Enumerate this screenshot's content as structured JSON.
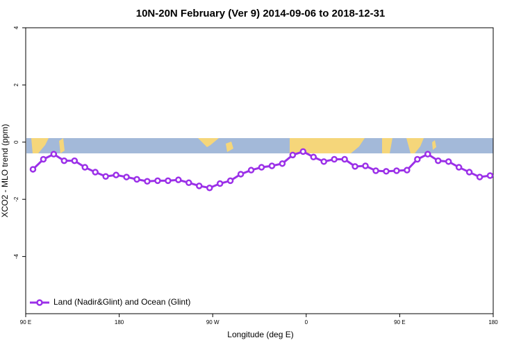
{
  "chart_data": {
    "type": "line",
    "title": "10N-20N February (Ver 9)   2014-09-06 to 2018-12-31",
    "x_label": "Longitude (deg E)",
    "y_label": "XCO2 - MLO trend (ppm)",
    "x": [
      97,
      107,
      117,
      127,
      137,
      147,
      157,
      167,
      177,
      187,
      197,
      207,
      217,
      227,
      237,
      247,
      257,
      267,
      277,
      287,
      297,
      307,
      317,
      327,
      337,
      347,
      357,
      367,
      377,
      387,
      397,
      407,
      417,
      427,
      437,
      447,
      457,
      467,
      477,
      487,
      497,
      507,
      517,
      527,
      537
    ],
    "series": [
      {
        "name": "Land (Nadir&Glint) and Ocean (Glint)",
        "color": "#9b30e8",
        "values": [
          -0.95,
          -0.6,
          -0.42,
          -0.65,
          -0.65,
          -0.88,
          -1.05,
          -1.2,
          -1.15,
          -1.22,
          -1.3,
          -1.37,
          -1.35,
          -1.35,
          -1.32,
          -1.42,
          -1.53,
          -1.6,
          -1.45,
          -1.35,
          -1.12,
          -0.98,
          -0.88,
          -0.83,
          -0.75,
          -0.45,
          -0.33,
          -0.52,
          -0.68,
          -0.6,
          -0.6,
          -0.85,
          -0.83,
          -1.0,
          -1.02,
          -1.0,
          -0.98,
          -0.6,
          -0.42,
          -0.65,
          -0.68,
          -0.88,
          -1.05,
          -1.22,
          -1.17
        ]
      }
    ],
    "xlim": [
      90,
      540
    ],
    "xticks": [
      {
        "value": 90,
        "label": "90 E"
      },
      180,
      {
        "value": 270,
        "label": "90 W"
      },
      {
        "value": 360,
        "label": "0"
      },
      {
        "value": 450,
        "label": "90 E"
      },
      {
        "value": 540,
        "label": "180"
      }
    ],
    "ylim": [
      -6,
      4
    ],
    "yticks": [
      4,
      2,
      0,
      -2,
      -4
    ],
    "legend": "bottom-left"
  }
}
